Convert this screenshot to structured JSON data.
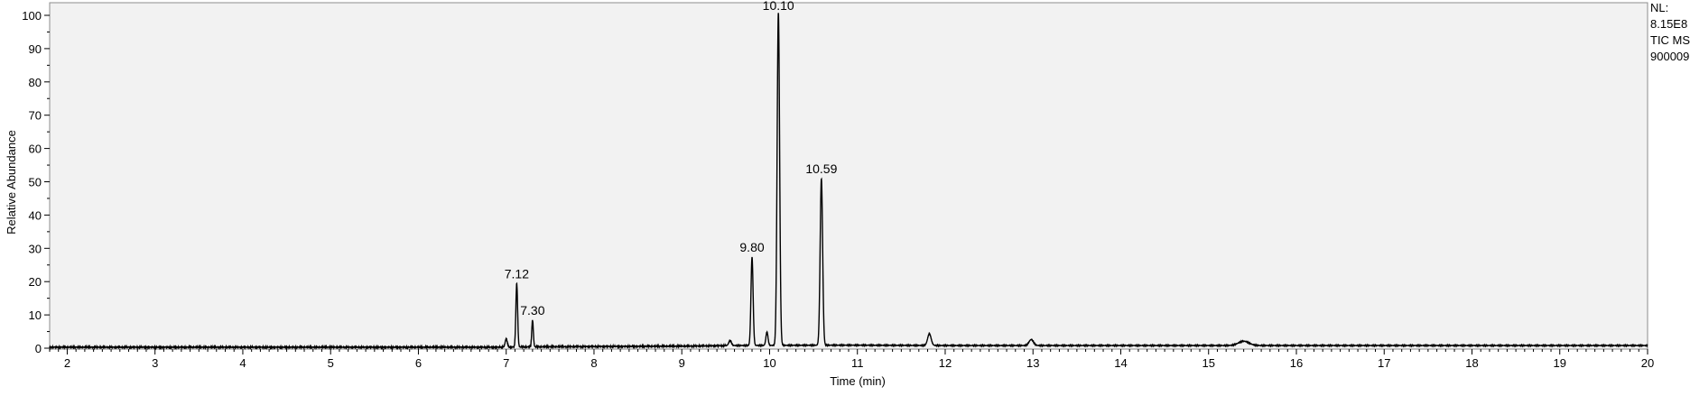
{
  "chart_data": {
    "type": "line",
    "title": "",
    "xlabel": "Time (min)",
    "ylabel": "Relative Abundance",
    "xlim": [
      1.8,
      20.0
    ],
    "ylim": [
      0,
      100
    ],
    "x_ticks": [
      2,
      3,
      4,
      5,
      6,
      7,
      8,
      9,
      10,
      11,
      12,
      13,
      14,
      15,
      16,
      17,
      18,
      19,
      20
    ],
    "y_ticks": [
      0,
      10,
      20,
      30,
      40,
      50,
      60,
      70,
      80,
      90,
      100
    ],
    "grid": false,
    "line_color": "#000000",
    "plot_background": "#f2f2f2",
    "info_lines": [
      "NL:",
      "8.15E8",
      "TIC  MS",
      "900009"
    ],
    "baseline": [
      [
        1.8,
        0.3
      ],
      [
        6.9,
        0.3
      ],
      [
        7.3,
        0.4
      ],
      [
        8.0,
        0.5
      ],
      [
        9.0,
        0.6
      ],
      [
        9.6,
        0.8
      ],
      [
        10.6,
        0.9
      ],
      [
        11.0,
        0.9
      ],
      [
        12.0,
        0.8
      ],
      [
        13.0,
        0.8
      ],
      [
        15.0,
        0.8
      ],
      [
        16.0,
        0.8
      ],
      [
        20.0,
        0.8
      ]
    ],
    "peaks": [
      {
        "rt": 7.0,
        "height": 2.5,
        "width": 0.012
      },
      {
        "rt": 7.12,
        "height": 19.0,
        "width": 0.01,
        "label": "7.12"
      },
      {
        "rt": 7.3,
        "height": 8.0,
        "width": 0.009,
        "label": "7.30"
      },
      {
        "rt": 9.55,
        "height": 1.5,
        "width": 0.015
      },
      {
        "rt": 9.8,
        "height": 26.5,
        "width": 0.012,
        "label": "9.80"
      },
      {
        "rt": 9.97,
        "height": 4.0,
        "width": 0.012
      },
      {
        "rt": 10.1,
        "height": 100.0,
        "width": 0.014,
        "label": "10.10"
      },
      {
        "rt": 10.59,
        "height": 50.0,
        "width": 0.014,
        "label": "10.59"
      },
      {
        "rt": 11.82,
        "height": 3.5,
        "width": 0.02
      },
      {
        "rt": 12.98,
        "height": 1.8,
        "width": 0.025
      },
      {
        "rt": 15.4,
        "height": 1.3,
        "width": 0.06
      }
    ]
  }
}
